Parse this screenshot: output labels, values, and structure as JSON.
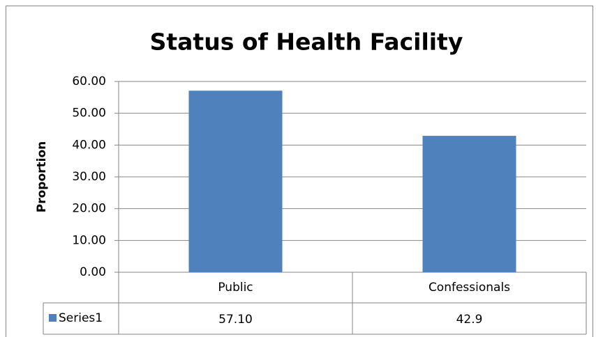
{
  "chart_data": {
    "type": "bar",
    "title": "Status of Health Facility",
    "ylabel": "Proportion",
    "categories": [
      "Public",
      "Confessionals"
    ],
    "series": [
      {
        "name": "Series1",
        "color": "#4f81bd",
        "values": [
          57.1,
          42.9
        ],
        "value_labels": [
          "57.10",
          "42.9"
        ]
      }
    ],
    "ylim": [
      0,
      60
    ],
    "yticks": [
      {
        "value": 0,
        "label": "0.00"
      },
      {
        "value": 10,
        "label": "10.00"
      },
      {
        "value": 20,
        "label": "20.00"
      },
      {
        "value": 30,
        "label": "30.00"
      },
      {
        "value": 40,
        "label": "40.00"
      },
      {
        "value": 50,
        "label": "50.00"
      },
      {
        "value": 60,
        "label": "60.00"
      }
    ],
    "grid": true
  }
}
